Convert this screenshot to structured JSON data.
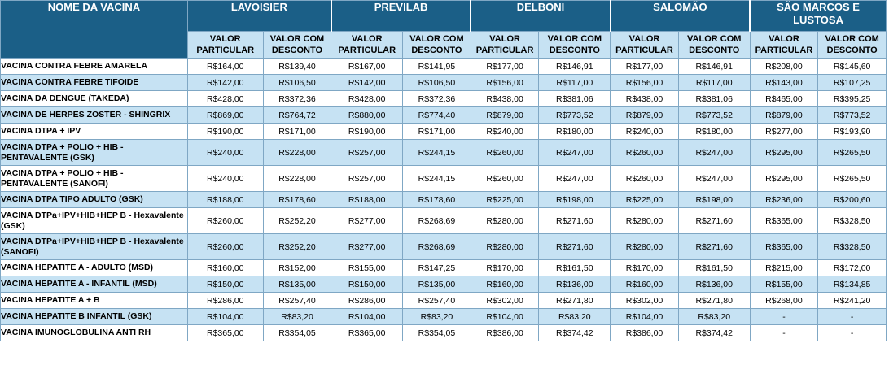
{
  "header": {
    "name_col": "NOME DA VACINA",
    "labs": [
      "LAVOISIER",
      "PREVILAB",
      "DELBONI",
      "SALOMÃO",
      "SÃO MARCOS E LUSTOSA"
    ],
    "sub_headers": [
      "VALOR PARTICULAR",
      "VALOR COM DESCONTO"
    ]
  },
  "rows": [
    {
      "name": "VACINA CONTRA FEBRE AMARELA",
      "values": [
        "R$164,00",
        "R$139,40",
        "R$167,00",
        "R$141,95",
        "R$177,00",
        "R$146,91",
        "R$177,00",
        "R$146,91",
        "R$208,00",
        "R$145,60"
      ]
    },
    {
      "name": "VACINA CONTRA FEBRE TIFOIDE",
      "values": [
        "R$142,00",
        "R$106,50",
        "R$142,00",
        "R$106,50",
        "R$156,00",
        "R$117,00",
        "R$156,00",
        "R$117,00",
        "R$143,00",
        "R$107,25"
      ]
    },
    {
      "name": "VACINA DA DENGUE (TAKEDA)",
      "values": [
        "R$428,00",
        "R$372,36",
        "R$428,00",
        "R$372,36",
        "R$438,00",
        "R$381,06",
        "R$438,00",
        "R$381,06",
        "R$465,00",
        "R$395,25"
      ]
    },
    {
      "name": "VACINA DE HERPES ZOSTER - SHINGRIX",
      "values": [
        "R$869,00",
        "R$764,72",
        "R$880,00",
        "R$774,40",
        "R$879,00",
        "R$773,52",
        "R$879,00",
        "R$773,52",
        "R$879,00",
        "R$773,52"
      ]
    },
    {
      "name": "VACINA DTPA + IPV",
      "values": [
        "R$190,00",
        "R$171,00",
        "R$190,00",
        "R$171,00",
        "R$240,00",
        "R$180,00",
        "R$240,00",
        "R$180,00",
        "R$277,00",
        "R$193,90"
      ]
    },
    {
      "name": "VACINA DTPA + POLIO + HIB - PENTAVALENTE (GSK)",
      "values": [
        "R$240,00",
        "R$228,00",
        "R$257,00",
        "R$244,15",
        "R$260,00",
        "R$247,00",
        "R$260,00",
        "R$247,00",
        "R$295,00",
        "R$265,50"
      ]
    },
    {
      "name": "VACINA DTPA + POLIO + HIB - PENTAVALENTE (SANOFI)",
      "values": [
        "R$240,00",
        "R$228,00",
        "R$257,00",
        "R$244,15",
        "R$260,00",
        "R$247,00",
        "R$260,00",
        "R$247,00",
        "R$295,00",
        "R$265,50"
      ]
    },
    {
      "name": "VACINA DTPA TIPO ADULTO (GSK)",
      "values": [
        "R$188,00",
        "R$178,60",
        "R$188,00",
        "R$178,60",
        "R$225,00",
        "R$198,00",
        "R$225,00",
        "R$198,00",
        "R$236,00",
        "R$200,60"
      ]
    },
    {
      "name": "VACINA DTPa+IPV+HIB+HEP B - Hexavalente (GSK)",
      "values": [
        "R$260,00",
        "R$252,20",
        "R$277,00",
        "R$268,69",
        "R$280,00",
        "R$271,60",
        "R$280,00",
        "R$271,60",
        "R$365,00",
        "R$328,50"
      ]
    },
    {
      "name": "VACINA DTPa+IPV+HIB+HEP B - Hexavalente (SANOFI)",
      "values": [
        "R$260,00",
        "R$252,20",
        "R$277,00",
        "R$268,69",
        "R$280,00",
        "R$271,60",
        "R$280,00",
        "R$271,60",
        "R$365,00",
        "R$328,50"
      ]
    },
    {
      "name": "VACINA HEPATITE A - ADULTO (MSD)",
      "values": [
        "R$160,00",
        "R$152,00",
        "R$155,00",
        "R$147,25",
        "R$170,00",
        "R$161,50",
        "R$170,00",
        "R$161,50",
        "R$215,00",
        "R$172,00"
      ]
    },
    {
      "name": "VACINA HEPATITE A - INFANTIL (MSD)",
      "values": [
        "R$150,00",
        "R$135,00",
        "R$150,00",
        "R$135,00",
        "R$160,00",
        "R$136,00",
        "R$160,00",
        "R$136,00",
        "R$155,00",
        "R$134,85"
      ]
    },
    {
      "name": "VACINA HEPATITE A + B",
      "values": [
        "R$286,00",
        "R$257,40",
        "R$286,00",
        "R$257,40",
        "R$302,00",
        "R$271,80",
        "R$302,00",
        "R$271,80",
        "R$268,00",
        "R$241,20"
      ]
    },
    {
      "name": "VACINA HEPATITE B INFANTIL (GSK)",
      "values": [
        "R$104,00",
        "R$83,20",
        "R$104,00",
        "R$83,20",
        "R$104,00",
        "R$83,20",
        "R$104,00",
        "R$83,20",
        "-",
        "-"
      ]
    },
    {
      "name": "VACINA IMUNOGLOBULINA ANTI RH",
      "values": [
        "R$365,00",
        "R$354,05",
        "R$365,00",
        "R$354,05",
        "R$386,00",
        "R$374,42",
        "R$386,00",
        "R$374,42",
        "-",
        "-"
      ]
    }
  ]
}
